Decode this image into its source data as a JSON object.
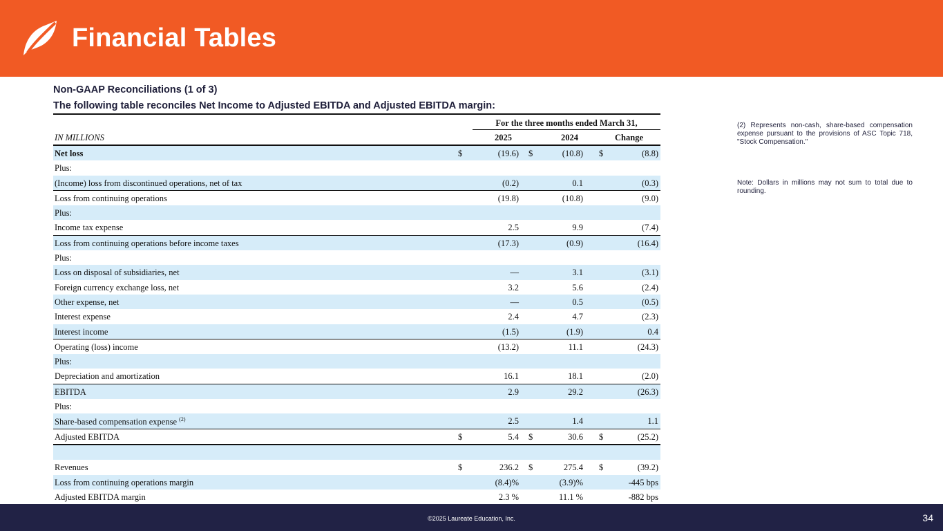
{
  "header": {
    "title": "Financial Tables"
  },
  "subtitle1": "Non-GAAP  Reconciliations  (1 of 3)",
  "subtitle2": "The following  table  reconciles  Net Income  to  Adjusted  EBITDA and  Adjusted  EBITDA margin:",
  "table": {
    "period_header": "For the three  months  ended March  31,",
    "unit_label": "IN MILLIONS",
    "columns": [
      "2025",
      "2024",
      "Change"
    ],
    "rows": [
      {
        "label": "Net loss",
        "bold": true,
        "shade": true,
        "cur": [
          "$",
          "$",
          "$"
        ],
        "values": [
          "(19.6)",
          "(10.8)",
          "(8.8)"
        ]
      },
      {
        "label": "Plus:",
        "values": [
          "",
          "",
          ""
        ]
      },
      {
        "label": "(Income)  loss from discontinued operations, net of tax",
        "shade": true,
        "values": [
          "(0.2)",
          "0.1",
          "(0.3)"
        ]
      },
      {
        "label": "Loss  from continuing  operations",
        "topline": true,
        "values": [
          "(19.8)",
          "(10.8)",
          "(9.0)"
        ]
      },
      {
        "label": "Plus:",
        "shade": true,
        "values": [
          "",
          "",
          ""
        ]
      },
      {
        "label": "Income  tax expense",
        "values": [
          "2.5",
          "9.9",
          "(7.4)"
        ]
      },
      {
        "label": "Loss  from continuing  operations before income  taxes",
        "shade": true,
        "topline": true,
        "values": [
          "(17.3)",
          "(0.9)",
          "(16.4)"
        ]
      },
      {
        "label": "Plus:",
        "values": [
          "",
          "",
          ""
        ]
      },
      {
        "label": "Loss on disposal of subsidiaries, net",
        "shade": true,
        "values": [
          "—",
          "3.1",
          "(3.1)"
        ]
      },
      {
        "label": "Foreign currency  exchange  loss, net",
        "values": [
          "3.2",
          "5.6",
          "(2.4)"
        ]
      },
      {
        "label": "Other  expense,  net",
        "shade": true,
        "values": [
          "—",
          "0.5",
          "(0.5)"
        ]
      },
      {
        "label": "Interest  expense",
        "values": [
          "2.4",
          "4.7",
          "(2.3)"
        ]
      },
      {
        "label": "Interest  income",
        "shade": true,
        "values": [
          "(1.5)",
          "(1.9)",
          "0.4"
        ]
      },
      {
        "label": "Operating  (loss) income",
        "topline": true,
        "values": [
          "(13.2)",
          "11.1",
          "(24.3)"
        ]
      },
      {
        "label": "Plus:",
        "shade": true,
        "values": [
          "",
          "",
          ""
        ]
      },
      {
        "label": "Depreciation and amortization",
        "values": [
          "16.1",
          "18.1",
          "(2.0)"
        ]
      },
      {
        "label": "EBITDA",
        "shade": true,
        "topline": true,
        "values": [
          "2.9",
          "29.2",
          "(26.3)"
        ]
      },
      {
        "label": "Plus:",
        "values": [
          "",
          "",
          ""
        ]
      },
      {
        "label": "Share-based compensation  expense",
        "note": "(2)",
        "shade": true,
        "values": [
          "2.5",
          "1.4",
          "1.1"
        ]
      },
      {
        "label": "Adjusted  EBITDA",
        "topline": true,
        "bottomline": true,
        "cur": [
          "$",
          "$",
          "$"
        ],
        "values": [
          "5.4",
          "30.6",
          "(25.2)"
        ]
      },
      {
        "label": "",
        "shade": true,
        "values": [
          "",
          "",
          ""
        ]
      },
      {
        "label": "Revenues",
        "cur": [
          "$",
          "$",
          "$"
        ],
        "values": [
          "236.2",
          "275.4",
          "(39.2)"
        ]
      },
      {
        "label": "Loss  from continuing  operations margin",
        "shade": true,
        "values": [
          "(8.4)%",
          "(3.9)%",
          "-445 bps"
        ]
      },
      {
        "label": "Adjusted  EBITDA  margin",
        "bottomline": true,
        "values": [
          "2.3 %",
          "11.1 %",
          "-882 bps"
        ]
      }
    ]
  },
  "notes": {
    "note_2": "(2)  Represents  non-cash,  share-based compensation expense pursuant to the provisions of ASC Topic 718, \"Stock Compensation.\"",
    "rounding": "Note:  Dollars in millions may not sum to total due to rounding."
  },
  "footer": {
    "copyright": "©2025 Laureate Education, Inc.",
    "page_number": "34"
  },
  "colors": {
    "brand_orange": "#f15a24",
    "footer_navy": "#212245",
    "row_shade": "#d6ecf9"
  }
}
